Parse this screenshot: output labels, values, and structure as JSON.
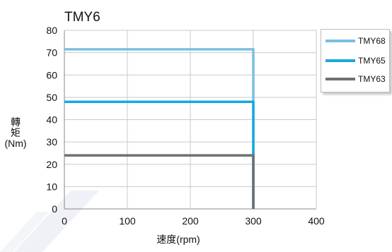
{
  "chart_data": {
    "type": "line",
    "title": "TMY6",
    "xlabel": "速度(rpm)",
    "ylabel_lines": [
      "轉",
      "矩",
      "(Nm)"
    ],
    "xlim": [
      0,
      400
    ],
    "ylim": [
      0,
      80
    ],
    "xticks": [
      0,
      100,
      200,
      300,
      400
    ],
    "yticks": [
      0,
      10,
      20,
      30,
      40,
      50,
      60,
      70,
      80
    ],
    "grid": true,
    "legend_position": "top-right",
    "series": [
      {
        "name": "TMY68",
        "color": "#7bbfe0",
        "x": [
          0,
          300,
          300
        ],
        "y": [
          71.5,
          71.5,
          0
        ]
      },
      {
        "name": "TMY65",
        "color": "#19a8df",
        "x": [
          0,
          300,
          300
        ],
        "y": [
          48,
          48,
          0
        ]
      },
      {
        "name": "TMY63",
        "color": "#707070",
        "x": [
          0,
          300,
          300
        ],
        "y": [
          24,
          24,
          0
        ]
      }
    ]
  }
}
